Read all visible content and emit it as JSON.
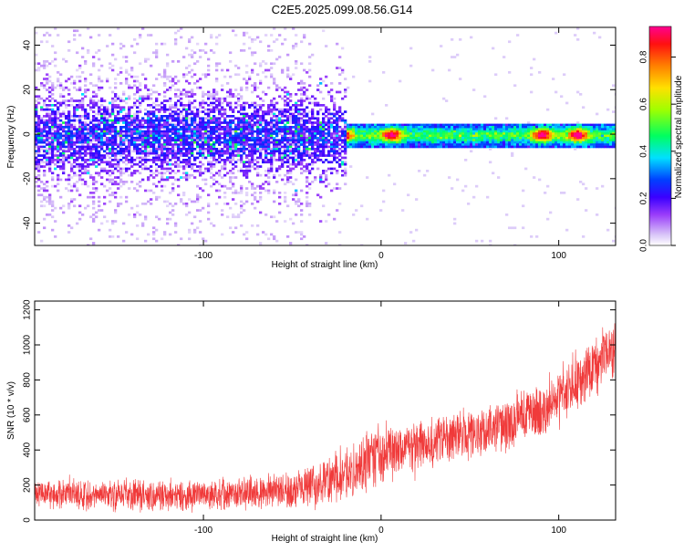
{
  "page_title": "C2E5.2025.099.08.56.G14",
  "colors": {
    "series_snr": "#f03a3a",
    "frame": "#000000",
    "background": "#ffffff"
  },
  "chart_data": [
    {
      "type": "heatmap",
      "title": "C2E5.2025.099.08.56.G14",
      "xlabel": "Height of straight line (km)",
      "ylabel": "Frequency (Hz)",
      "xlim": [
        -195,
        132
      ],
      "ylim": [
        -50,
        48
      ],
      "xticks": [
        -100,
        0,
        100
      ],
      "yticks": [
        -40,
        -20,
        0,
        20,
        40
      ],
      "colorbar": {
        "label": "Normalized spectral amplitude",
        "range": [
          0.0,
          0.93
        ],
        "ticks": [
          0.0,
          0.2,
          0.4,
          0.6,
          0.8
        ],
        "colormap": [
          "#ffffff",
          "#b98ef5",
          "#7f00ff",
          "#0000ff",
          "#00ffff",
          "#00ff00",
          "#ffff00",
          "#ff7f00",
          "#ff0000",
          "#ff0088"
        ]
      },
      "description_points": {
        "center_frequency_hz": 0,
        "transition_height_km": -20,
        "peak_amplitude_at_km": [
          -23,
          5,
          90,
          110
        ]
      }
    },
    {
      "type": "line",
      "xlabel": "Height of straight line (km)",
      "ylabel": "SNR (10 * v/v)",
      "xlim": [
        -195,
        132
      ],
      "ylim": [
        0,
        1250
      ],
      "xticks": [
        -100,
        0,
        100
      ],
      "yticks": [
        0,
        200,
        400,
        600,
        800,
        1000,
        1200
      ],
      "series": [
        {
          "name": "SNR",
          "trend_x": [
            -195,
            -150,
            -100,
            -50,
            -20,
            0,
            30,
            60,
            90,
            110,
            132
          ],
          "trend_y": [
            150,
            140,
            140,
            170,
            250,
            380,
            450,
            520,
            620,
            780,
            1000
          ],
          "spread_y": [
            90,
            90,
            90,
            110,
            170,
            180,
            150,
            150,
            170,
            180,
            200
          ]
        }
      ]
    }
  ]
}
